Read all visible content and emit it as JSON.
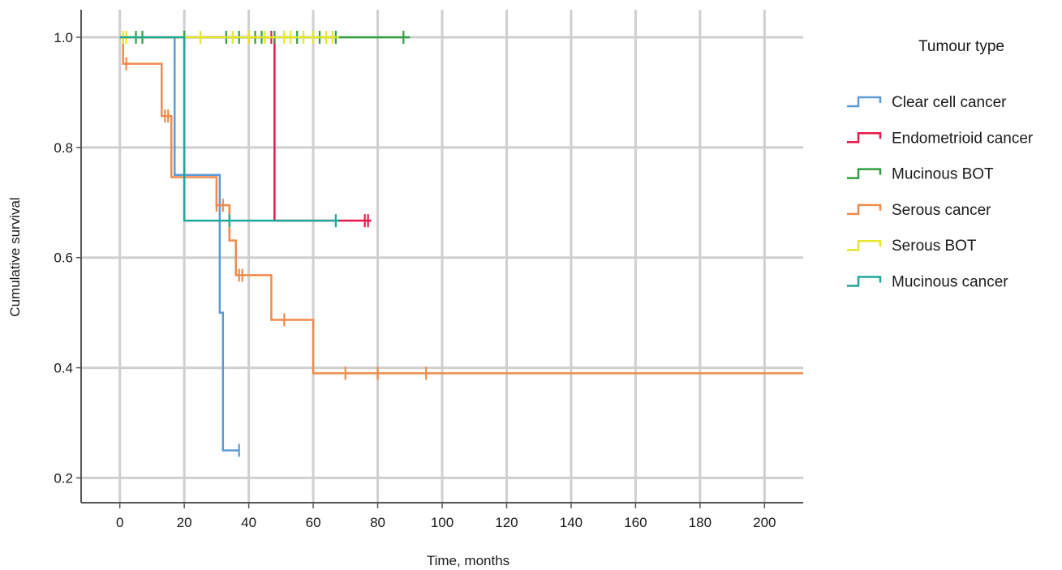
{
  "chart_data": {
    "type": "line",
    "subtype": "kaplan-meier",
    "xlabel": "Time, months",
    "ylabel": "Cumulative survival",
    "xlim": [
      -12,
      212
    ],
    "ylim": [
      0.155,
      1.05
    ],
    "xticks": [
      0,
      20,
      40,
      60,
      80,
      100,
      120,
      140,
      160,
      180,
      200
    ],
    "yticks": [
      0.2,
      0.4,
      0.6,
      0.8,
      1.0
    ],
    "ytick_labels": [
      "0.2",
      "0.4",
      "0.6",
      "0.8",
      "1.0"
    ],
    "grid": true,
    "legend_title": "Tumour type",
    "legend_position": "right",
    "series": [
      {
        "name": "Clear cell cancer",
        "color": "#5b9bd5",
        "steps": [
          [
            0,
            1.0
          ],
          [
            17,
            0.75
          ],
          [
            31,
            0.5
          ],
          [
            32,
            0.25
          ],
          [
            37,
            0.25
          ]
        ],
        "censored": [
          [
            37,
            0.25
          ]
        ]
      },
      {
        "name": "Endometrioid cancer",
        "color": "#e8194b",
        "steps": [
          [
            0,
            1.0
          ],
          [
            48,
            0.667
          ],
          [
            78,
            0.667
          ]
        ],
        "censored": [
          [
            47,
            1.0
          ],
          [
            76,
            0.667
          ],
          [
            77,
            0.667
          ]
        ]
      },
      {
        "name": "Mucinous BOT",
        "color": "#2e9e3e",
        "steps": [
          [
            0,
            1.0
          ],
          [
            90,
            1.0
          ]
        ],
        "censored": [
          [
            5,
            1.0
          ],
          [
            7,
            1.0
          ],
          [
            20,
            1.0
          ],
          [
            33,
            1.0
          ],
          [
            37,
            1.0
          ],
          [
            42,
            1.0
          ],
          [
            44,
            1.0
          ],
          [
            48,
            1.0
          ],
          [
            55,
            1.0
          ],
          [
            62,
            1.0
          ],
          [
            67,
            1.0
          ],
          [
            88,
            1.0
          ]
        ]
      },
      {
        "name": "Serous cancer",
        "color": "#f08a4b",
        "steps": [
          [
            0,
            1.0
          ],
          [
            1,
            0.952
          ],
          [
            13,
            0.857
          ],
          [
            16,
            0.746
          ],
          [
            30,
            0.695
          ],
          [
            34,
            0.631
          ],
          [
            36,
            0.568
          ],
          [
            47,
            0.487
          ],
          [
            60,
            0.39
          ],
          [
            212,
            0.39
          ]
        ],
        "censored": [
          [
            2,
            0.952
          ],
          [
            14,
            0.857
          ],
          [
            15,
            0.857
          ],
          [
            30,
            0.695
          ],
          [
            32,
            0.695
          ],
          [
            37,
            0.568
          ],
          [
            38,
            0.568
          ],
          [
            51,
            0.487
          ],
          [
            70,
            0.39
          ],
          [
            80,
            0.39
          ],
          [
            95,
            0.39
          ]
        ]
      },
      {
        "name": "Serous BOT",
        "color": "#e6e62a",
        "steps": [
          [
            0,
            1.0
          ],
          [
            68,
            1.0
          ]
        ],
        "censored": [
          [
            1,
            1.0
          ],
          [
            2,
            1.0
          ],
          [
            25,
            1.0
          ],
          [
            35,
            1.0
          ],
          [
            40,
            1.0
          ],
          [
            45,
            1.0
          ],
          [
            51,
            1.0
          ],
          [
            53,
            1.0
          ],
          [
            57,
            1.0
          ],
          [
            60,
            1.0
          ],
          [
            64,
            1.0
          ],
          [
            66,
            1.0
          ]
        ]
      },
      {
        "name": "Mucinous cancer",
        "color": "#1fa89a",
        "steps": [
          [
            0,
            1.0
          ],
          [
            20,
            0.667
          ],
          [
            68,
            0.667
          ]
        ],
        "censored": [
          [
            34,
            0.667
          ],
          [
            67,
            0.667
          ]
        ]
      }
    ]
  }
}
